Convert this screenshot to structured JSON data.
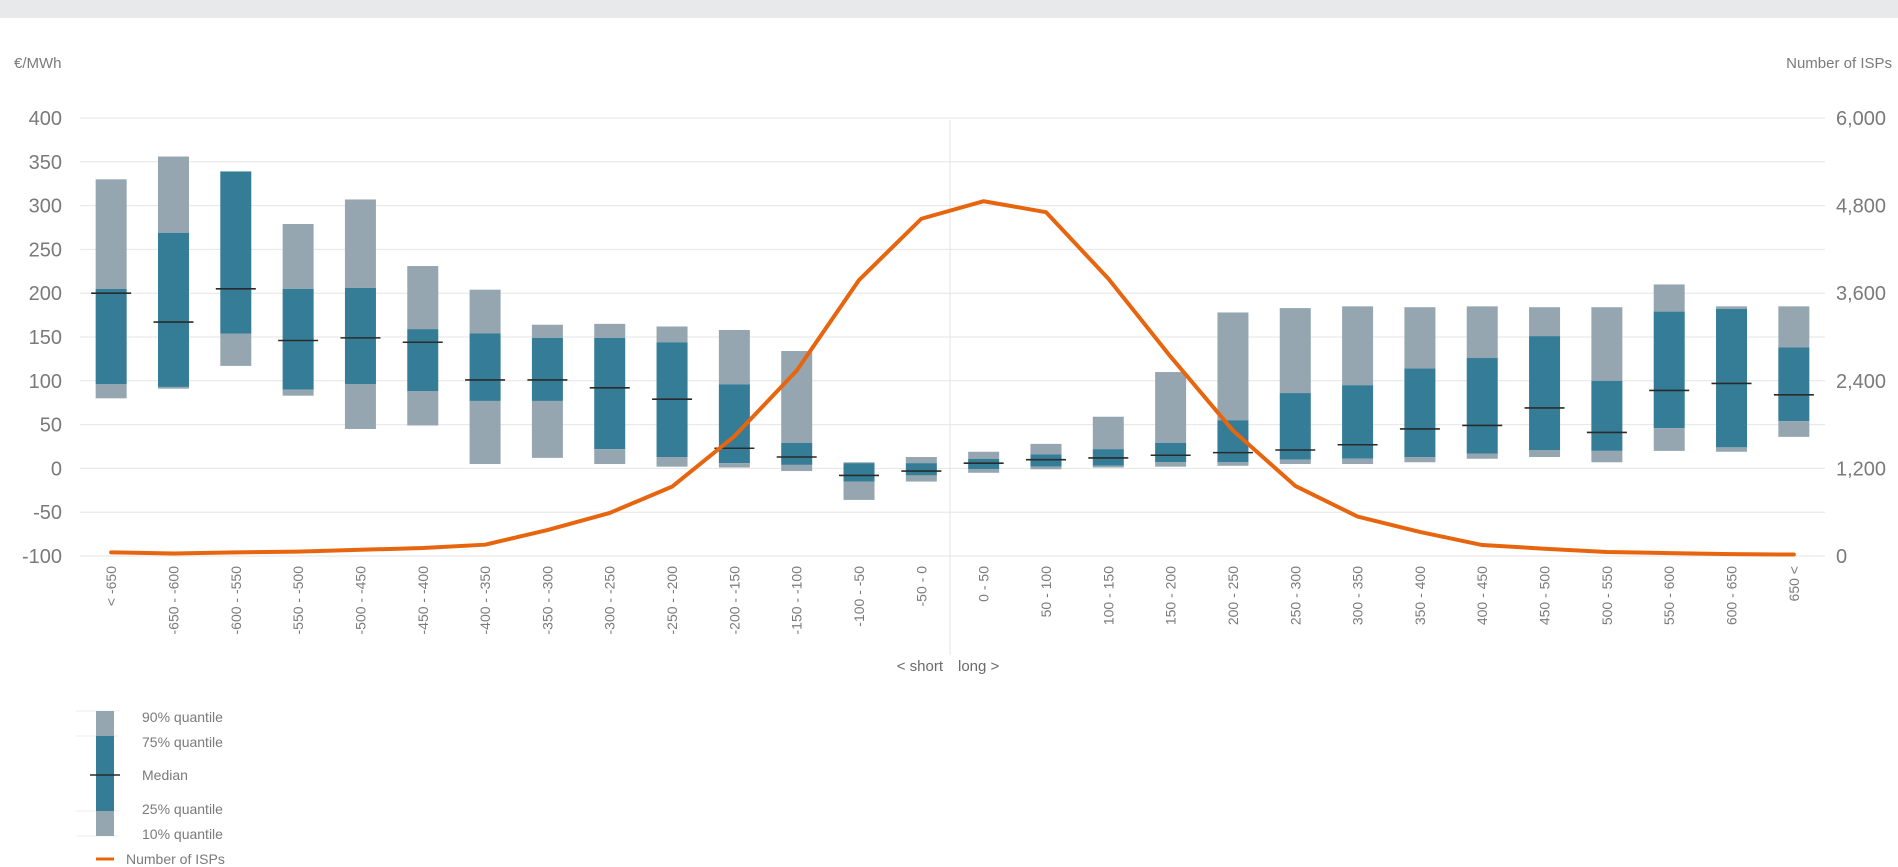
{
  "chart_data": {
    "type": "bar",
    "left_unit": "€/MWh",
    "right_unit": "Number of ISPs",
    "left_ticks": [
      "400",
      "350",
      "300",
      "250",
      "200",
      "150",
      "100",
      "50",
      "0",
      "-50",
      "-100"
    ],
    "right_ticks": [
      "6,000",
      "4,800",
      "3,600",
      "2,400",
      "1,200",
      "0"
    ],
    "ylim_left": [
      -100,
      400
    ],
    "ylim_right": [
      0,
      6000
    ],
    "grid": true,
    "center_label_short": "< short",
    "center_label_long": "long >",
    "categories": [
      "< -650",
      "-650 - -600",
      "-600 - -550",
      "-550 - -500",
      "-500 - -450",
      "-450 - -400",
      "-400 - -350",
      "-350 - -300",
      "-300 - -250",
      "-250 - -200",
      "-200 - -150",
      "-150 - -100",
      "-100 - -50",
      "-50 - 0",
      "0 - 50",
      "50 - 100",
      "100 - 150",
      "150 - 200",
      "200 - 250",
      "250 - 300",
      "300 - 350",
      "350 - 400",
      "400 - 450",
      "450 - 500",
      "500 - 550",
      "550 - 600",
      "600 - 650",
      "650 <"
    ],
    "q10": [
      80,
      91,
      117,
      83,
      45,
      49,
      5,
      12,
      5,
      2,
      1,
      -3,
      -36,
      -15,
      -5,
      -1,
      1,
      2,
      3,
      5,
      5,
      7,
      11,
      13,
      7,
      20,
      19,
      36
    ],
    "q25": [
      96,
      93,
      154,
      90,
      96,
      88,
      77,
      77,
      22,
      13,
      6,
      4,
      -15,
      -8,
      -1,
      2,
      3,
      7,
      7,
      10,
      11,
      13,
      17,
      21,
      20,
      46,
      24,
      54
    ],
    "median": [
      200,
      167,
      205,
      146,
      149,
      144,
      101,
      101,
      92,
      79,
      23,
      13,
      -8,
      -3,
      6,
      10,
      12,
      15,
      18,
      21,
      27,
      45,
      49,
      69,
      41,
      89,
      97,
      84
    ],
    "q75": [
      205,
      269,
      339,
      205,
      206,
      159,
      154,
      149,
      149,
      144,
      96,
      29,
      6,
      6,
      11,
      16,
      22,
      29,
      55,
      86,
      95,
      114,
      126,
      151,
      100,
      179,
      182,
      138
    ],
    "q90": [
      330,
      356,
      339,
      279,
      307,
      231,
      204,
      164,
      165,
      162,
      158,
      134,
      7,
      13,
      19,
      28,
      59,
      110,
      178,
      183,
      185,
      184,
      185,
      184,
      184,
      210,
      185,
      185
    ],
    "isps": [
      50,
      35,
      50,
      60,
      85,
      110,
      155,
      355,
      590,
      950,
      1640,
      2540,
      3780,
      4620,
      4860,
      4710,
      3800,
      2730,
      1720,
      960,
      540,
      330,
      150,
      100,
      55,
      40,
      25,
      20
    ],
    "colors": {
      "outer_band": "#96a6b1",
      "inner_band": "#357c97",
      "median": "#2b2b2b",
      "line": "#e8650f",
      "grid": "#e6e6e6",
      "axis_text": "#7a7a7a"
    }
  },
  "legend": {
    "q90_label": "90% quantile",
    "q75_label": "75% quantile",
    "median_label": "Median",
    "q25_label": "25% quantile",
    "q10_label": "10% quantile",
    "line_label": "Number of ISPs"
  }
}
